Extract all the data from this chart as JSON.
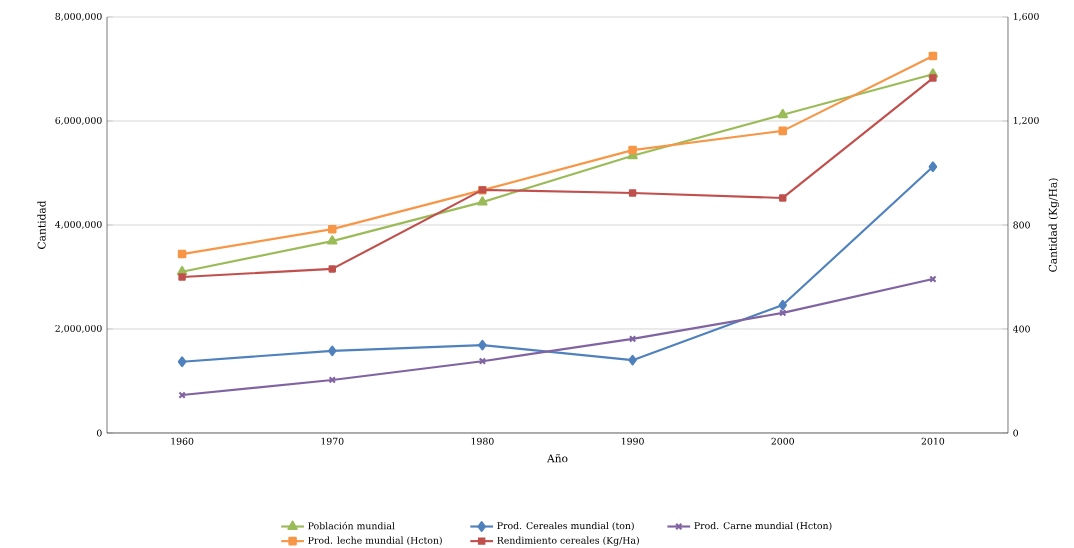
{
  "chart_data": {
    "type": "line",
    "xlabel": "Año",
    "ylabel": "Cantidad",
    "y2label": "Cantidad (Kg/Ha)",
    "categories": [
      "1960",
      "1970",
      "1980",
      "1990",
      "2000",
      "2010"
    ],
    "series": [
      {
        "name": "Población mundial",
        "color": "#9bbb59",
        "marker": "triangle",
        "values": [
          3100000,
          3690000,
          4440000,
          5330000,
          6120000,
          6900000
        ]
      },
      {
        "name": "Prod. Cereales mundial (ton)",
        "color": "#4f81bd",
        "marker": "diamond",
        "values": [
          1370000,
          1580000,
          1690000,
          1400000,
          2460000,
          5120000
        ]
      },
      {
        "name": "Prod. Carne mundial (Hcton)",
        "color": "#8064a2",
        "marker": "cross",
        "values": [
          730000,
          1020000,
          1380000,
          1810000,
          2310000,
          2960000
        ]
      },
      {
        "name": "Prod. leche mundial (Hcton)",
        "color": "#f79646",
        "marker": "square",
        "values": [
          3440000,
          3920000,
          4670000,
          5440000,
          5810000,
          7250000
        ]
      },
      {
        "name": "Rendimiento cereales (Kg/Ha)",
        "color": "#c0504d",
        "marker": "square",
        "axis": "y2",
        "values": [
          600,
          631,
          935,
          923,
          904,
          1365
        ]
      }
    ],
    "ylim": [
      0,
      8000000
    ],
    "yticks": [
      {
        "value": 0,
        "label": "0"
      },
      {
        "value": 2000000,
        "label": "2,000,000"
      },
      {
        "value": 4000000,
        "label": "4,000,000"
      },
      {
        "value": 6000000,
        "label": "6,000,000"
      },
      {
        "value": 8000000,
        "label": "8,000,000"
      }
    ],
    "y2lim": [
      0,
      1600
    ],
    "y2ticks": [
      {
        "value": 0,
        "label": "0"
      },
      {
        "value": 400,
        "label": "400"
      },
      {
        "value": 800,
        "label": "800"
      },
      {
        "value": 1200,
        "label": "1,200"
      },
      {
        "value": 1600,
        "label": "1,600"
      }
    ],
    "grid": "y",
    "legend": "bottom",
    "line_style": "solid"
  }
}
